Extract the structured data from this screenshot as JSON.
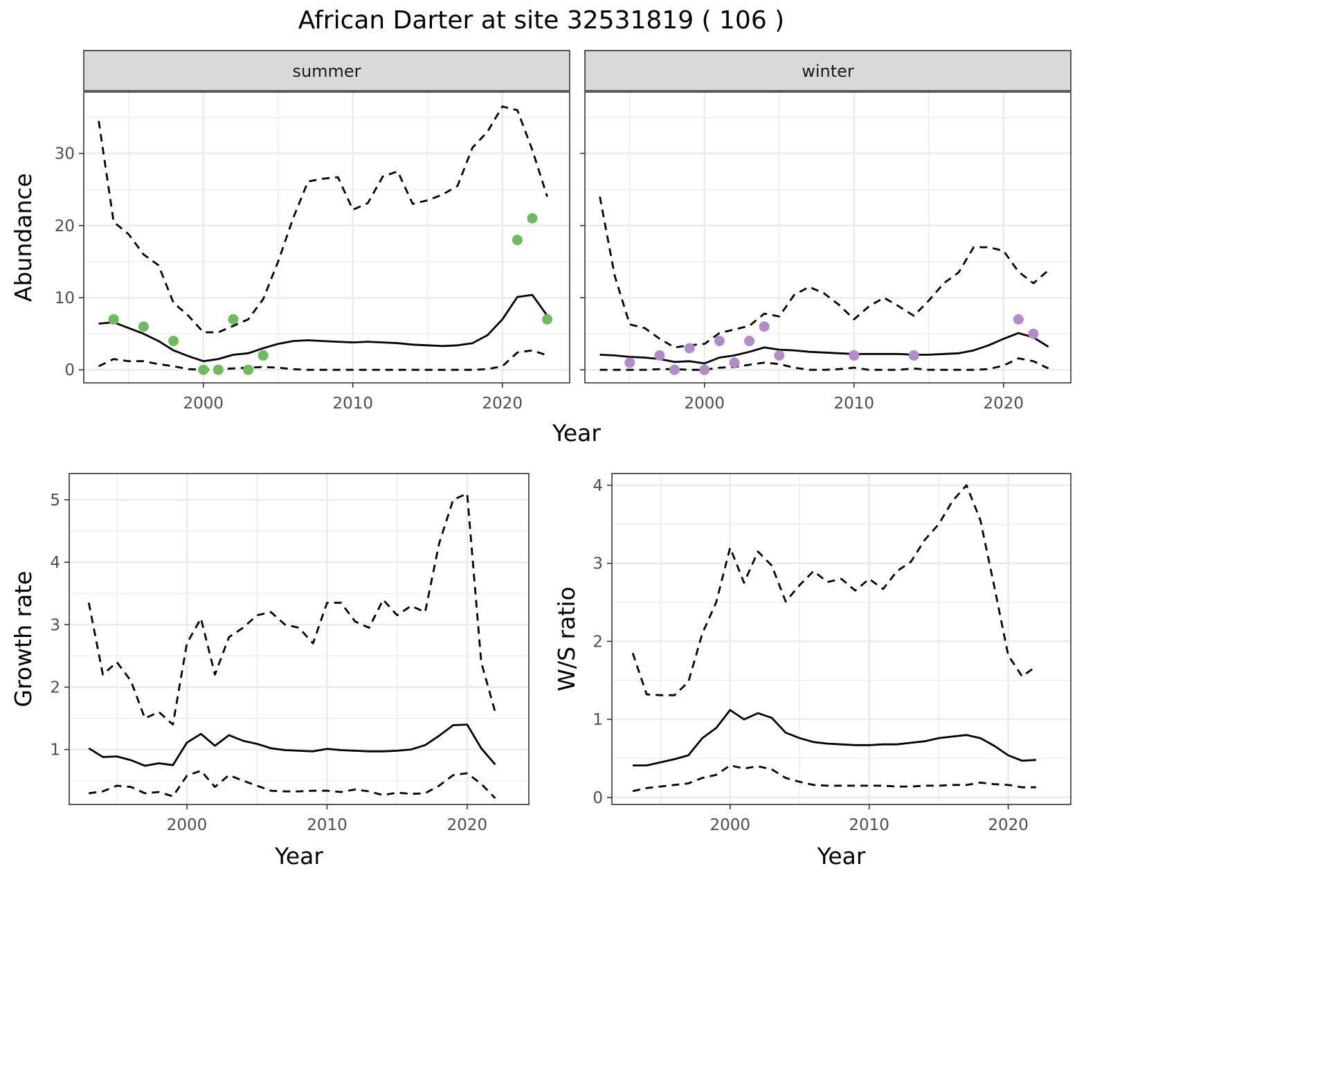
{
  "title": "African Darter at site 32531819 ( 106 )",
  "colors": {
    "summer": "#6abd5a",
    "winter": "#b58acb",
    "line": "#000000",
    "grid": "#ebebeb",
    "strip": "#d9d9d9"
  },
  "chart_data": [
    {
      "type": "line",
      "panel": "summer",
      "strip": "summer",
      "xlabel": "",
      "ylabel": "Abundance",
      "xlim": [
        1992,
        2024.5
      ],
      "ylim": [
        -1.8,
        38.5
      ],
      "xticks": [
        2000,
        2010,
        2020
      ],
      "yticks": [
        0,
        10,
        20,
        30
      ],
      "x": [
        1993,
        1994,
        1995,
        1996,
        1997,
        1998,
        1999,
        2000,
        2001,
        2002,
        2003,
        2004,
        2005,
        2006,
        2007,
        2008,
        2009,
        2010,
        2011,
        2012,
        2013,
        2014,
        2015,
        2016,
        2017,
        2018,
        2019,
        2020,
        2021,
        2022,
        2023
      ],
      "series": [
        {
          "role": "estimate",
          "style": "solid",
          "values": [
            6.4,
            6.6,
            5.8,
            5.0,
            4.0,
            2.7,
            1.9,
            1.2,
            1.5,
            2.1,
            2.3,
            3.0,
            3.6,
            4.0,
            4.1,
            4.0,
            3.9,
            3.8,
            3.9,
            3.8,
            3.7,
            3.5,
            3.4,
            3.3,
            3.4,
            3.7,
            4.8,
            7.0,
            10.1,
            10.4,
            7.5
          ]
        },
        {
          "role": "upper",
          "style": "dashed",
          "values": [
            34.5,
            20.5,
            18.8,
            16.0,
            14.5,
            9.3,
            7.5,
            5.2,
            5.2,
            6.1,
            7.0,
            9.8,
            15.0,
            21.0,
            26.1,
            26.5,
            26.7,
            22.2,
            23.1,
            26.8,
            27.5,
            23.0,
            23.5,
            24.3,
            25.5,
            30.8,
            33.0,
            36.5,
            36.0,
            30.5,
            24.0
          ]
        },
        {
          "role": "lower",
          "style": "dashed",
          "values": [
            0.5,
            1.5,
            1.2,
            1.2,
            0.8,
            0.5,
            0.1,
            0.0,
            0.1,
            0.2,
            0.3,
            0.4,
            0.3,
            0.1,
            0.0,
            0.0,
            0.0,
            0.0,
            0.0,
            0.0,
            0.0,
            0.0,
            0.0,
            0.0,
            0.0,
            0.0,
            0.1,
            0.5,
            2.4,
            2.7,
            2.0
          ]
        }
      ],
      "points": {
        "x": [
          1994,
          1996,
          1998,
          2000,
          2001,
          2002,
          2003,
          2004,
          2021,
          2022,
          2023
        ],
        "y": [
          7,
          6,
          4,
          0,
          0,
          7,
          0,
          2,
          18,
          21,
          7
        ]
      }
    },
    {
      "type": "line",
      "panel": "winter",
      "strip": "winter",
      "xlabel": "",
      "ylabel": "",
      "xlim": [
        1992,
        2024.5
      ],
      "ylim": [
        -1.8,
        38.5
      ],
      "xticks": [
        2000,
        2010,
        2020
      ],
      "yticks": [
        0,
        10,
        20,
        30
      ],
      "x": [
        1993,
        1994,
        1995,
        1996,
        1997,
        1998,
        1999,
        2000,
        2001,
        2002,
        2003,
        2004,
        2005,
        2006,
        2007,
        2008,
        2009,
        2010,
        2011,
        2012,
        2013,
        2014,
        2015,
        2016,
        2017,
        2018,
        2019,
        2020,
        2021,
        2022,
        2023
      ],
      "series": [
        {
          "role": "estimate",
          "style": "solid",
          "values": [
            2.1,
            2.0,
            1.8,
            1.7,
            1.5,
            1.1,
            1.2,
            0.9,
            1.7,
            2.0,
            2.5,
            3.1,
            2.8,
            2.7,
            2.5,
            2.4,
            2.3,
            2.2,
            2.2,
            2.2,
            2.2,
            2.1,
            2.1,
            2.2,
            2.3,
            2.7,
            3.4,
            4.3,
            5.1,
            4.5,
            3.2
          ]
        },
        {
          "role": "upper",
          "style": "dashed",
          "values": [
            24.0,
            13.0,
            6.3,
            5.8,
            4.3,
            3.1,
            3.4,
            3.6,
            5.1,
            5.6,
            6.1,
            7.8,
            7.4,
            10.4,
            11.5,
            10.6,
            9.0,
            7.0,
            8.8,
            10.0,
            8.8,
            7.5,
            9.6,
            12.0,
            13.5,
            17.0,
            17.0,
            16.5,
            13.6,
            12.0,
            13.8
          ]
        },
        {
          "role": "lower",
          "style": "dashed",
          "values": [
            0.0,
            0.0,
            0.0,
            0.0,
            0.1,
            0.1,
            0.0,
            0.0,
            0.3,
            0.4,
            0.7,
            1.0,
            0.8,
            0.3,
            0.0,
            0.0,
            0.1,
            0.3,
            0.0,
            0.0,
            0.0,
            0.2,
            0.0,
            0.0,
            0.0,
            0.0,
            0.1,
            0.6,
            1.6,
            1.2,
            0.2
          ]
        }
      ],
      "points": {
        "x": [
          1995,
          1997,
          1998,
          1999,
          2000,
          2001,
          2002,
          2003,
          2004,
          2005,
          2010,
          2014,
          2021,
          2022
        ],
        "y": [
          1,
          2,
          0,
          3,
          0,
          4,
          1,
          4,
          6,
          2,
          2,
          2,
          7,
          5
        ]
      }
    },
    {
      "type": "line",
      "panel": "growth",
      "xlabel": "Year",
      "ylabel": "Growth rate",
      "xlim": [
        1991.6,
        2024.4
      ],
      "ylim": [
        0.12,
        5.42
      ],
      "xticks": [
        2000,
        2010,
        2020
      ],
      "yticks": [
        1,
        2,
        3,
        4,
        5
      ],
      "x": [
        1993,
        1994,
        1995,
        1996,
        1997,
        1998,
        1999,
        2000,
        2001,
        2002,
        2003,
        2004,
        2005,
        2006,
        2007,
        2008,
        2009,
        2010,
        2011,
        2012,
        2013,
        2014,
        2015,
        2016,
        2017,
        2018,
        2019,
        2020,
        2021,
        2022
      ],
      "series": [
        {
          "role": "estimate",
          "style": "solid",
          "values": [
            1.02,
            0.88,
            0.89,
            0.83,
            0.74,
            0.78,
            0.75,
            1.11,
            1.25,
            1.06,
            1.23,
            1.14,
            1.09,
            1.02,
            0.99,
            0.98,
            0.97,
            1.01,
            0.99,
            0.98,
            0.97,
            0.97,
            0.98,
            1.0,
            1.07,
            1.22,
            1.39,
            1.4,
            1.02,
            0.76
          ]
        },
        {
          "role": "upper",
          "style": "dashed",
          "values": [
            3.35,
            2.2,
            2.4,
            2.1,
            1.5,
            1.6,
            1.4,
            2.7,
            3.1,
            2.2,
            2.8,
            2.95,
            3.15,
            3.2,
            3.0,
            2.95,
            2.7,
            3.35,
            3.35,
            3.05,
            2.95,
            3.4,
            3.15,
            3.3,
            3.2,
            4.3,
            5.0,
            5.1,
            2.4,
            1.6
          ]
        },
        {
          "role": "lower",
          "style": "dashed",
          "values": [
            0.3,
            0.33,
            0.42,
            0.4,
            0.3,
            0.32,
            0.25,
            0.58,
            0.66,
            0.4,
            0.59,
            0.5,
            0.42,
            0.34,
            0.33,
            0.33,
            0.34,
            0.34,
            0.32,
            0.36,
            0.33,
            0.27,
            0.31,
            0.29,
            0.3,
            0.42,
            0.59,
            0.62,
            0.45,
            0.22
          ]
        }
      ]
    },
    {
      "type": "line",
      "panel": "ratio",
      "xlabel": "Year",
      "ylabel": "W/S ratio",
      "xlim": [
        1991.5,
        2024.5
      ],
      "ylim": [
        -0.09,
        4.15
      ],
      "xticks": [
        2000,
        2010,
        2020
      ],
      "yticks": [
        0,
        1,
        2,
        3,
        4
      ],
      "x": [
        1993,
        1994,
        1995,
        1996,
        1997,
        1998,
        1999,
        2000,
        2001,
        2002,
        2003,
        2004,
        2005,
        2006,
        2007,
        2008,
        2009,
        2010,
        2011,
        2012,
        2013,
        2014,
        2015,
        2016,
        2017,
        2018,
        2019,
        2020,
        2021,
        2022
      ],
      "series": [
        {
          "role": "estimate",
          "style": "solid",
          "values": [
            0.41,
            0.41,
            0.45,
            0.49,
            0.54,
            0.76,
            0.89,
            1.12,
            1.0,
            1.08,
            1.02,
            0.83,
            0.76,
            0.71,
            0.69,
            0.68,
            0.67,
            0.67,
            0.68,
            0.68,
            0.7,
            0.72,
            0.76,
            0.78,
            0.8,
            0.76,
            0.66,
            0.54,
            0.47,
            0.48
          ]
        },
        {
          "role": "upper",
          "style": "dashed",
          "values": [
            1.85,
            1.32,
            1.31,
            1.31,
            1.48,
            2.1,
            2.5,
            3.2,
            2.75,
            3.15,
            2.97,
            2.51,
            2.72,
            2.9,
            2.76,
            2.8,
            2.65,
            2.8,
            2.67,
            2.9,
            3.02,
            3.3,
            3.5,
            3.8,
            4.0,
            3.55,
            2.7,
            1.82,
            1.55,
            1.68
          ]
        },
        {
          "role": "lower",
          "style": "dashed",
          "values": [
            0.08,
            0.12,
            0.14,
            0.16,
            0.18,
            0.25,
            0.29,
            0.41,
            0.37,
            0.4,
            0.36,
            0.25,
            0.2,
            0.16,
            0.15,
            0.15,
            0.15,
            0.15,
            0.15,
            0.14,
            0.14,
            0.15,
            0.15,
            0.16,
            0.16,
            0.19,
            0.17,
            0.16,
            0.13,
            0.13
          ]
        }
      ]
    }
  ],
  "shared_xlabel_top": "Year"
}
